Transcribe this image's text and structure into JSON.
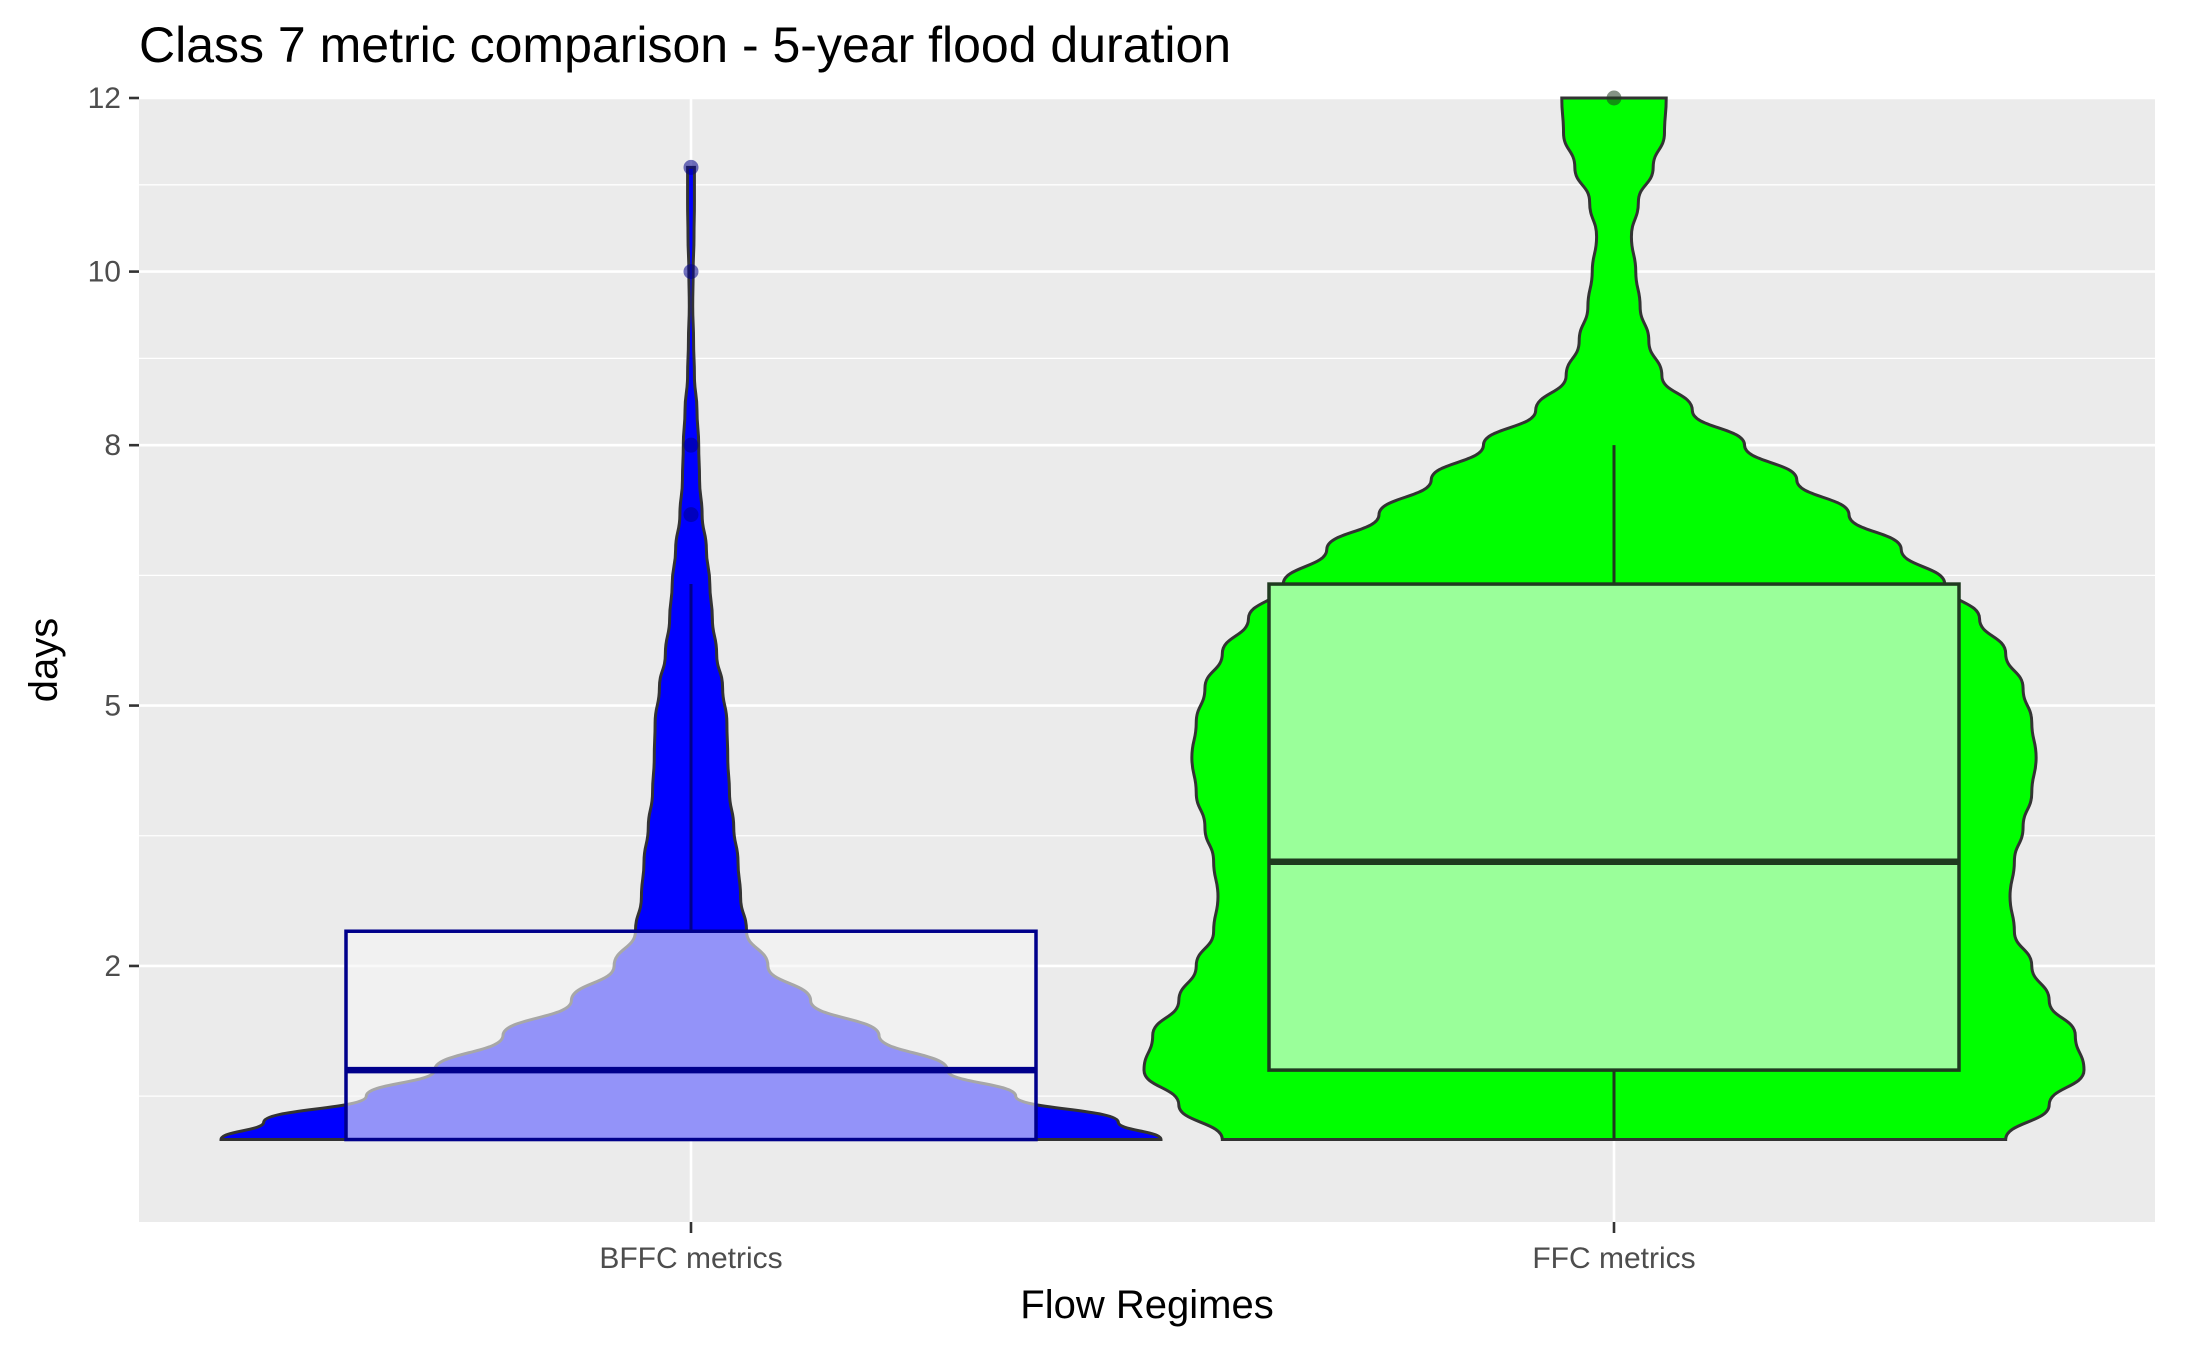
{
  "chart_data": {
    "type": "violin",
    "title": "Class 7 metric comparison - 5-year flood duration",
    "xlabel": "Flow Regimes",
    "ylabel": "days",
    "categories": [
      "BFFC metrics",
      "FFC metrics"
    ],
    "ylim": [
      -0.95,
      12
    ],
    "y_ticks": [
      2,
      5,
      8,
      10,
      12
    ],
    "grid": true,
    "legend": "none",
    "colors": {
      "panel_bg": "#ebebeb",
      "grid": "#ffffff",
      "tick_text": "#4d4d4d",
      "bffc_violin": "#0000ff",
      "bffc_box": "#f5f5f5",
      "bffc_box_line": "#00008b",
      "ffc_violin": "#00ff00",
      "ffc_box": "#9aff9a",
      "ffc_box_line": "#1f3a1f",
      "outline": "#333333"
    },
    "series": [
      {
        "category": "BFFC metrics",
        "box": {
          "lower": 0,
          "q1": 0,
          "median": 0.8,
          "q3": 2.4,
          "upper": 6.4
        },
        "outliers": [
          7.2,
          8,
          10,
          11.2
        ],
        "violin_profile": [
          [
            0,
            0.55
          ],
          [
            0.2,
            0.5
          ],
          [
            0.5,
            0.38
          ],
          [
            0.8,
            0.3
          ],
          [
            1.2,
            0.22
          ],
          [
            1.6,
            0.14
          ],
          [
            2.0,
            0.09
          ],
          [
            2.4,
            0.065
          ],
          [
            2.8,
            0.058
          ],
          [
            3.2,
            0.055
          ],
          [
            3.6,
            0.05
          ],
          [
            4.0,
            0.045
          ],
          [
            4.4,
            0.043
          ],
          [
            4.8,
            0.042
          ],
          [
            5.2,
            0.037
          ],
          [
            5.6,
            0.03
          ],
          [
            6.0,
            0.025
          ],
          [
            6.4,
            0.022
          ],
          [
            6.8,
            0.018
          ],
          [
            7.2,
            0.013
          ],
          [
            7.6,
            0.01
          ],
          [
            8.0,
            0.009
          ],
          [
            8.4,
            0.007
          ],
          [
            8.8,
            0.004
          ],
          [
            9.2,
            0.003
          ],
          [
            9.6,
            0.002
          ],
          [
            10.0,
            0.0025
          ],
          [
            10.4,
            0.0035
          ],
          [
            10.8,
            0.004
          ],
          [
            11.2,
            0.004
          ]
        ]
      },
      {
        "category": "FFC metrics",
        "box": {
          "lower": 0,
          "q1": 0.8,
          "median": 3.2,
          "q3": 6.4,
          "upper": 8
        },
        "outliers": [
          12
        ],
        "violin_profile": [
          [
            0,
            0.45
          ],
          [
            0.4,
            0.5
          ],
          [
            0.8,
            0.54
          ],
          [
            1.2,
            0.53
          ],
          [
            1.6,
            0.5
          ],
          [
            2.0,
            0.48
          ],
          [
            2.4,
            0.46
          ],
          [
            2.8,
            0.455
          ],
          [
            3.2,
            0.46
          ],
          [
            3.6,
            0.47
          ],
          [
            4.0,
            0.48
          ],
          [
            4.4,
            0.485
          ],
          [
            4.8,
            0.48
          ],
          [
            5.2,
            0.47
          ],
          [
            5.6,
            0.45
          ],
          [
            6.0,
            0.42
          ],
          [
            6.4,
            0.38
          ],
          [
            6.8,
            0.33
          ],
          [
            7.2,
            0.27
          ],
          [
            7.6,
            0.21
          ],
          [
            8.0,
            0.15
          ],
          [
            8.4,
            0.09
          ],
          [
            8.8,
            0.055
          ],
          [
            9.2,
            0.04
          ],
          [
            9.6,
            0.03
          ],
          [
            10.0,
            0.025
          ],
          [
            10.4,
            0.02
          ],
          [
            10.8,
            0.028
          ],
          [
            11.2,
            0.045
          ],
          [
            11.6,
            0.058
          ],
          [
            12.0,
            0.06
          ]
        ]
      }
    ]
  }
}
